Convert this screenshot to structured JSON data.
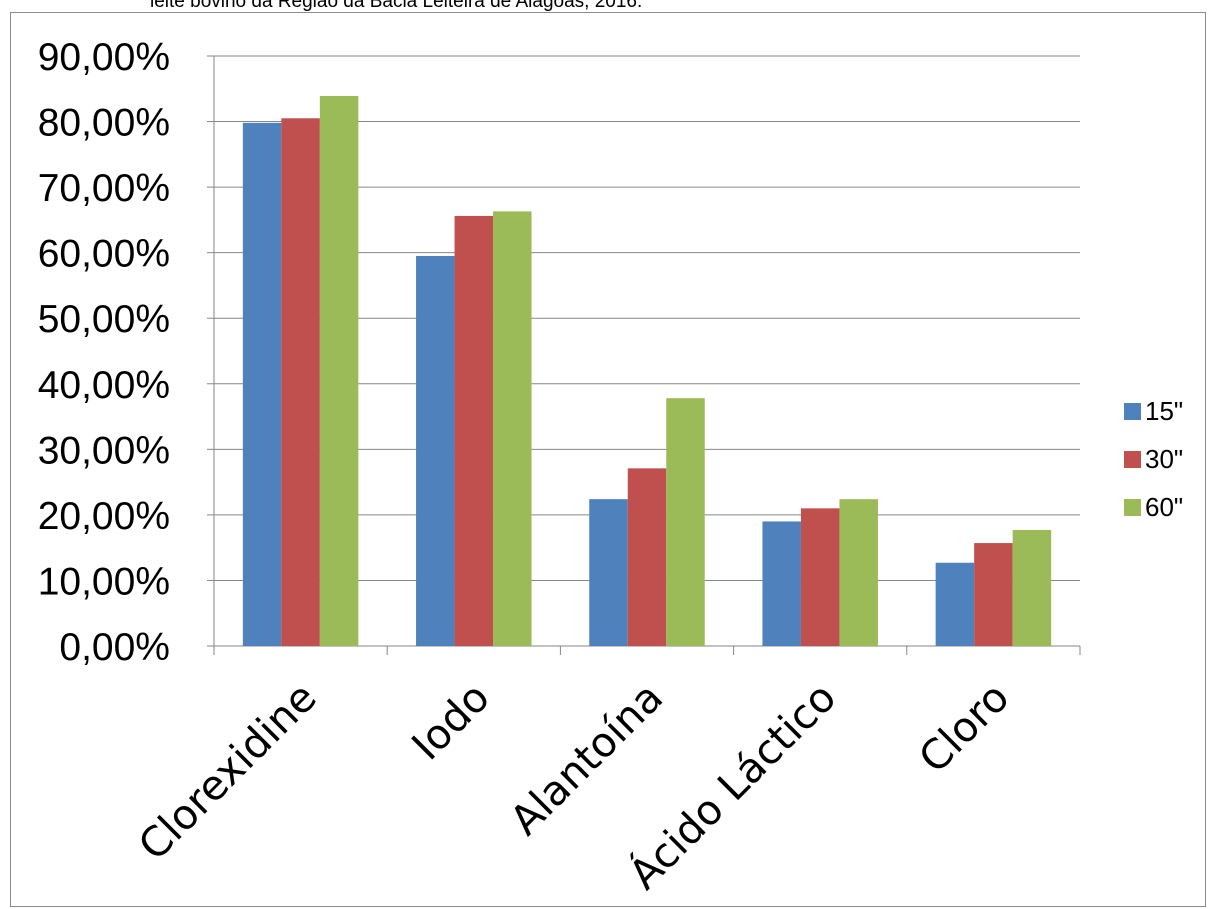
{
  "caption": "leite bovino da Região da Bacia Leiteira de Alagoas, 2016.",
  "chart_data": {
    "type": "bar",
    "categories": [
      "Clorexidine",
      "Iodo",
      "Alantoína",
      "Ácido Láctico",
      "Cloro"
    ],
    "series": [
      {
        "name": "15\"",
        "color": "#4F81BD",
        "values": [
          79.8,
          59.5,
          22.4,
          19.0,
          12.7
        ]
      },
      {
        "name": "30\"",
        "color": "#C0504D",
        "values": [
          80.5,
          65.6,
          27.1,
          21.0,
          15.7
        ]
      },
      {
        "name": "60\"",
        "color": "#9BBB59",
        "values": [
          83.9,
          66.3,
          37.8,
          22.4,
          17.7
        ]
      }
    ],
    "ylim": [
      0,
      90
    ],
    "yticks": [
      "0,00%",
      "10,00%",
      "20,00%",
      "30,00%",
      "40,00%",
      "50,00%",
      "60,00%",
      "70,00%",
      "80,00%",
      "90,00%"
    ],
    "grid": true,
    "legend": "right",
    "title": "",
    "xlabel": "",
    "ylabel": ""
  }
}
